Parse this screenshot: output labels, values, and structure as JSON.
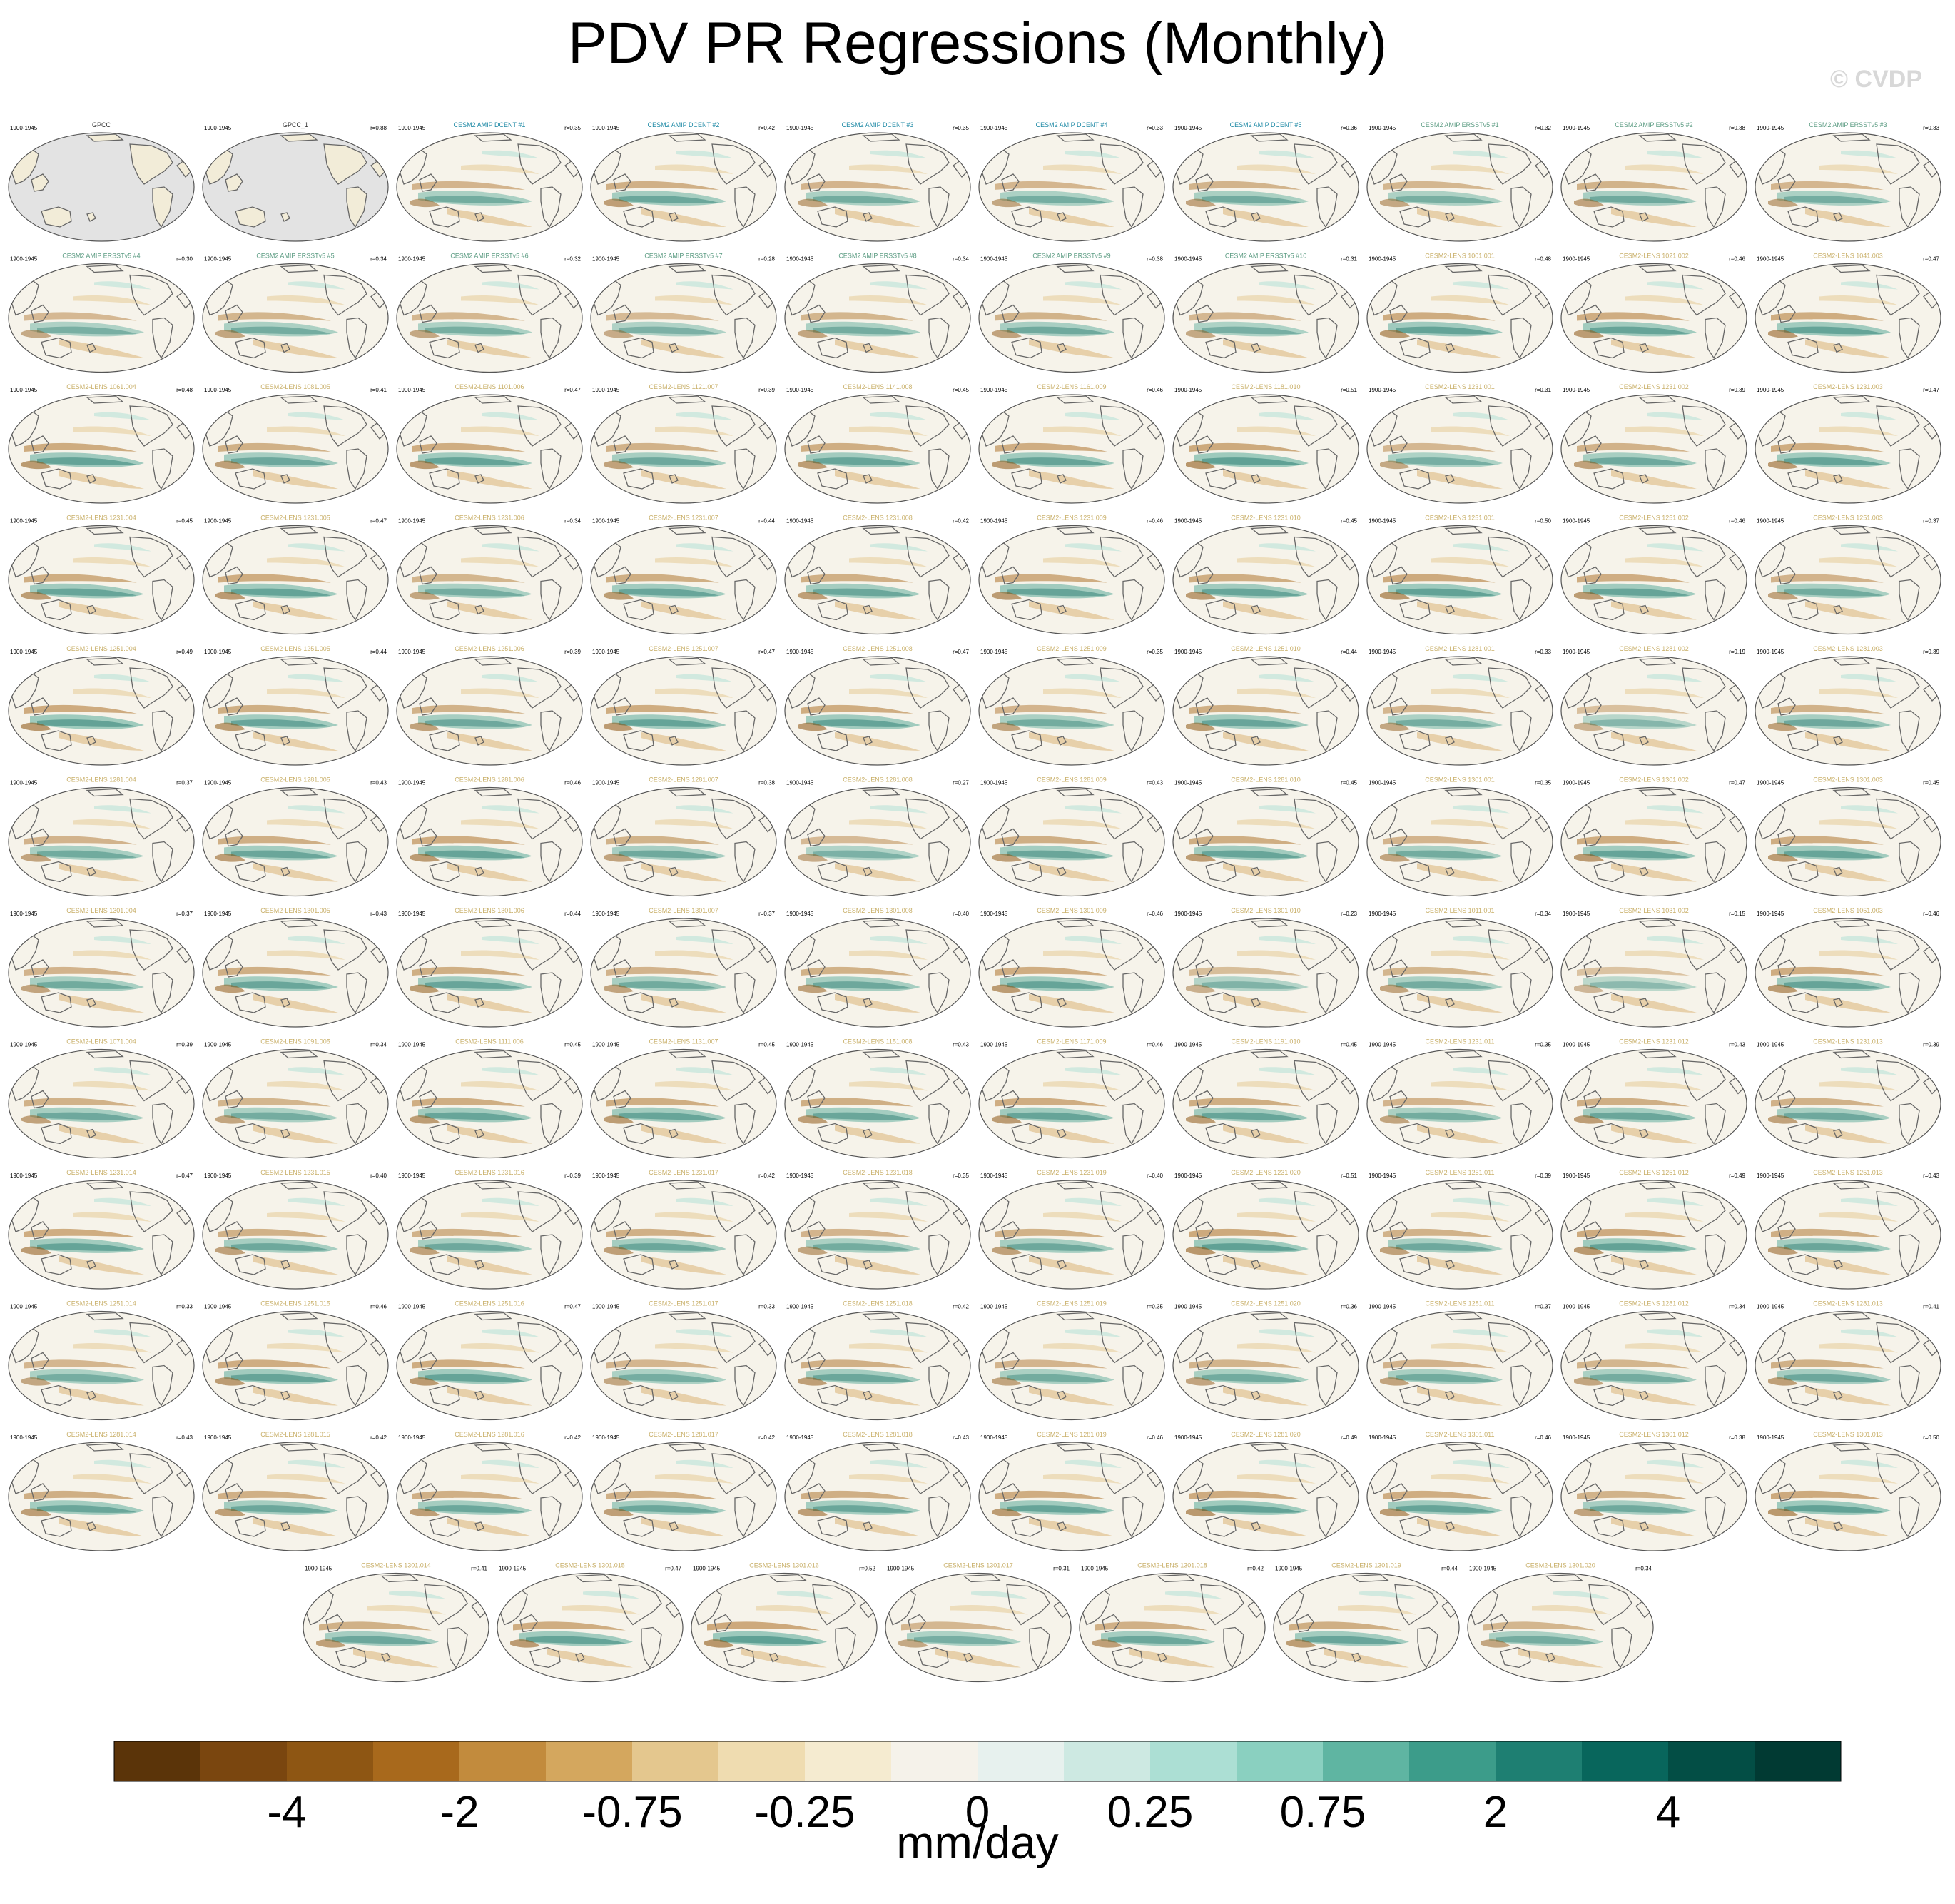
{
  "title": "PDV PR Regressions (Monthly)",
  "watermark": "© CVDP",
  "chart_data": {
    "type": "map-panel-grid",
    "title": "PDV PR Regressions (Monthly)",
    "variable": "PR",
    "units": "mm/day",
    "colorbar": {
      "tick_labels": [
        "-4",
        "-2",
        "-0.75",
        "-0.25",
        "0",
        "0.25",
        "0.75",
        "2",
        "4"
      ],
      "units_label": "mm/day",
      "colors": [
        "#5b3409",
        "#7a460f",
        "#8e5613",
        "#a8691c",
        "#c28b3d",
        "#d4a75e",
        "#e4c78e",
        "#efdcb0",
        "#f5ebd0",
        "#f5f2ea",
        "#e7f1ee",
        "#cde9e2",
        "#acdfd4",
        "#8ad0c0",
        "#5fb5a2",
        "#3c9c8a",
        "#1e7f72",
        "#08665c",
        "#034e45",
        "#013a33"
      ]
    },
    "panels": [
      {
        "name": "GPCC",
        "period": "1900-1945",
        "r": "",
        "obs": true
      },
      {
        "name": "GPCC_1",
        "period": "1900-1945",
        "r": "r=0.88",
        "obs": true
      },
      {
        "name": "CESM2 AMIP DCENT #1",
        "period": "1900-1945",
        "r": "r=0.35"
      },
      {
        "name": "CESM2 AMIP DCENT #2",
        "period": "1900-1945",
        "r": "r=0.42"
      },
      {
        "name": "CESM2 AMIP DCENT #3",
        "period": "1900-1945",
        "r": "r=0.35"
      },
      {
        "name": "CESM2 AMIP DCENT #4",
        "period": "1900-1945",
        "r": "r=0.33"
      },
      {
        "name": "CESM2 AMIP DCENT #5",
        "period": "1900-1945",
        "r": "r=0.36"
      },
      {
        "name": "CESM2 AMIP ERSSTv5 #1",
        "period": "1900-1945",
        "r": "r=0.32"
      },
      {
        "name": "CESM2 AMIP ERSSTv5 #2",
        "period": "1900-1945",
        "r": "r=0.38"
      },
      {
        "name": "CESM2 AMIP ERSSTv5 #3",
        "period": "1900-1945",
        "r": "r=0.33"
      },
      {
        "name": "CESM2 AMIP ERSSTv5 #4",
        "period": "1900-1945",
        "r": "r=0.30"
      },
      {
        "name": "CESM2 AMIP ERSSTv5 #5",
        "period": "1900-1945",
        "r": "r=0.34"
      },
      {
        "name": "CESM2 AMIP ERSSTv5 #6",
        "period": "1900-1945",
        "r": "r=0.32"
      },
      {
        "name": "CESM2 AMIP ERSSTv5 #7",
        "period": "1900-1945",
        "r": "r=0.28"
      },
      {
        "name": "CESM2 AMIP ERSSTv5 #8",
        "period": "1900-1945",
        "r": "r=0.34"
      },
      {
        "name": "CESM2 AMIP ERSSTv5 #9",
        "period": "1900-1945",
        "r": "r=0.38"
      },
      {
        "name": "CESM2 AMIP ERSSTv5 #10",
        "period": "1900-1945",
        "r": "r=0.31"
      },
      {
        "name": "CESM2-LENS 1001.001",
        "period": "1900-1945",
        "r": "r=0.48"
      },
      {
        "name": "CESM2-LENS 1021.002",
        "period": "1900-1945",
        "r": "r=0.46"
      },
      {
        "name": "CESM2-LENS 1041.003",
        "period": "1900-1945",
        "r": "r=0.47"
      },
      {
        "name": "CESM2-LENS 1061.004",
        "period": "1900-1945",
        "r": "r=0.48"
      },
      {
        "name": "CESM2-LENS 1081.005",
        "period": "1900-1945",
        "r": "r=0.41"
      },
      {
        "name": "CESM2-LENS 1101.006",
        "period": "1900-1945",
        "r": "r=0.47"
      },
      {
        "name": "CESM2-LENS 1121.007",
        "period": "1900-1945",
        "r": "r=0.39"
      },
      {
        "name": "CESM2-LENS 1141.008",
        "period": "1900-1945",
        "r": "r=0.45"
      },
      {
        "name": "CESM2-LENS 1161.009",
        "period": "1900-1945",
        "r": "r=0.46"
      },
      {
        "name": "CESM2-LENS 1181.010",
        "period": "1900-1945",
        "r": "r=0.51"
      },
      {
        "name": "CESM2-LENS 1231.001",
        "period": "1900-1945",
        "r": "r=0.31"
      },
      {
        "name": "CESM2-LENS 1231.002",
        "period": "1900-1945",
        "r": "r=0.39"
      },
      {
        "name": "CESM2-LENS 1231.003",
        "period": "1900-1945",
        "r": "r=0.47"
      },
      {
        "name": "CESM2-LENS 1231.004",
        "period": "1900-1945",
        "r": "r=0.45"
      },
      {
        "name": "CESM2-LENS 1231.005",
        "period": "1900-1945",
        "r": "r=0.47"
      },
      {
        "name": "CESM2-LENS 1231.006",
        "period": "1900-1945",
        "r": "r=0.34"
      },
      {
        "name": "CESM2-LENS 1231.007",
        "period": "1900-1945",
        "r": "r=0.44"
      },
      {
        "name": "CESM2-LENS 1231.008",
        "period": "1900-1945",
        "r": "r=0.42"
      },
      {
        "name": "CESM2-LENS 1231.009",
        "period": "1900-1945",
        "r": "r=0.46"
      },
      {
        "name": "CESM2-LENS 1231.010",
        "period": "1900-1945",
        "r": "r=0.45"
      },
      {
        "name": "CESM2-LENS 1251.001",
        "period": "1900-1945",
        "r": "r=0.50"
      },
      {
        "name": "CESM2-LENS 1251.002",
        "period": "1900-1945",
        "r": "r=0.46"
      },
      {
        "name": "CESM2-LENS 1251.003",
        "period": "1900-1945",
        "r": "r=0.37"
      },
      {
        "name": "CESM2-LENS 1251.004",
        "period": "1900-1945",
        "r": "r=0.49"
      },
      {
        "name": "CESM2-LENS 1251.005",
        "period": "1900-1945",
        "r": "r=0.44"
      },
      {
        "name": "CESM2-LENS 1251.006",
        "period": "1900-1945",
        "r": "r=0.39"
      },
      {
        "name": "CESM2-LENS 1251.007",
        "period": "1900-1945",
        "r": "r=0.47"
      },
      {
        "name": "CESM2-LENS 1251.008",
        "period": "1900-1945",
        "r": "r=0.47"
      },
      {
        "name": "CESM2-LENS 1251.009",
        "period": "1900-1945",
        "r": "r=0.35"
      },
      {
        "name": "CESM2-LENS 1251.010",
        "period": "1900-1945",
        "r": "r=0.44"
      },
      {
        "name": "CESM2-LENS 1281.001",
        "period": "1900-1945",
        "r": "r=0.33"
      },
      {
        "name": "CESM2-LENS 1281.002",
        "period": "1900-1945",
        "r": "r=0.19"
      },
      {
        "name": "CESM2-LENS 1281.003",
        "period": "1900-1945",
        "r": "r=0.39"
      },
      {
        "name": "CESM2-LENS 1281.004",
        "period": "1900-1945",
        "r": "r=0.37"
      },
      {
        "name": "CESM2-LENS 1281.005",
        "period": "1900-1945",
        "r": "r=0.43"
      },
      {
        "name": "CESM2-LENS 1281.006",
        "period": "1900-1945",
        "r": "r=0.46"
      },
      {
        "name": "CESM2-LENS 1281.007",
        "period": "1900-1945",
        "r": "r=0.38"
      },
      {
        "name": "CESM2-LENS 1281.008",
        "period": "1900-1945",
        "r": "r=0.27"
      },
      {
        "name": "CESM2-LENS 1281.009",
        "period": "1900-1945",
        "r": "r=0.43"
      },
      {
        "name": "CESM2-LENS 1281.010",
        "period": "1900-1945",
        "r": "r=0.45"
      },
      {
        "name": "CESM2-LENS 1301.001",
        "period": "1900-1945",
        "r": "r=0.35"
      },
      {
        "name": "CESM2-LENS 1301.002",
        "period": "1900-1945",
        "r": "r=0.47"
      },
      {
        "name": "CESM2-LENS 1301.003",
        "period": "1900-1945",
        "r": "r=0.45"
      },
      {
        "name": "CESM2-LENS 1301.004",
        "period": "1900-1945",
        "r": "r=0.37"
      },
      {
        "name": "CESM2-LENS 1301.005",
        "period": "1900-1945",
        "r": "r=0.43"
      },
      {
        "name": "CESM2-LENS 1301.006",
        "period": "1900-1945",
        "r": "r=0.44"
      },
      {
        "name": "CESM2-LENS 1301.007",
        "period": "1900-1945",
        "r": "r=0.37"
      },
      {
        "name": "CESM2-LENS 1301.008",
        "period": "1900-1945",
        "r": "r=0.40"
      },
      {
        "name": "CESM2-LENS 1301.009",
        "period": "1900-1945",
        "r": "r=0.46"
      },
      {
        "name": "CESM2-LENS 1301.010",
        "period": "1900-1945",
        "r": "r=0.23"
      },
      {
        "name": "CESM2-LENS 1011.001",
        "period": "1900-1945",
        "r": "r=0.34"
      },
      {
        "name": "CESM2-LENS 1031.002",
        "period": "1900-1945",
        "r": "r=0.15"
      },
      {
        "name": "CESM2-LENS 1051.003",
        "period": "1900-1945",
        "r": "r=0.46"
      },
      {
        "name": "CESM2-LENS 1071.004",
        "period": "1900-1945",
        "r": "r=0.39"
      },
      {
        "name": "CESM2-LENS 1091.005",
        "period": "1900-1945",
        "r": "r=0.34"
      },
      {
        "name": "CESM2-LENS 1111.006",
        "period": "1900-1945",
        "r": "r=0.45"
      },
      {
        "name": "CESM2-LENS 1131.007",
        "period": "1900-1945",
        "r": "r=0.45"
      },
      {
        "name": "CESM2-LENS 1151.008",
        "period": "1900-1945",
        "r": "r=0.43"
      },
      {
        "name": "CESM2-LENS 1171.009",
        "period": "1900-1945",
        "r": "r=0.46"
      },
      {
        "name": "CESM2-LENS 1191.010",
        "period": "1900-1945",
        "r": "r=0.45"
      },
      {
        "name": "CESM2-LENS 1231.011",
        "period": "1900-1945",
        "r": "r=0.35"
      },
      {
        "name": "CESM2-LENS 1231.012",
        "period": "1900-1945",
        "r": "r=0.43"
      },
      {
        "name": "CESM2-LENS 1231.013",
        "period": "1900-1945",
        "r": "r=0.39"
      },
      {
        "name": "CESM2-LENS 1231.014",
        "period": "1900-1945",
        "r": "r=0.47"
      },
      {
        "name": "CESM2-LENS 1231.015",
        "period": "1900-1945",
        "r": "r=0.40"
      },
      {
        "name": "CESM2-LENS 1231.016",
        "period": "1900-1945",
        "r": "r=0.39"
      },
      {
        "name": "CESM2-LENS 1231.017",
        "period": "1900-1945",
        "r": "r=0.42"
      },
      {
        "name": "CESM2-LENS 1231.018",
        "period": "1900-1945",
        "r": "r=0.35"
      },
      {
        "name": "CESM2-LENS 1231.019",
        "period": "1900-1945",
        "r": "r=0.40"
      },
      {
        "name": "CESM2-LENS 1231.020",
        "period": "1900-1945",
        "r": "r=0.51"
      },
      {
        "name": "CESM2-LENS 1251.011",
        "period": "1900-1945",
        "r": "r=0.39"
      },
      {
        "name": "CESM2-LENS 1251.012",
        "period": "1900-1945",
        "r": "r=0.49"
      },
      {
        "name": "CESM2-LENS 1251.013",
        "period": "1900-1945",
        "r": "r=0.43"
      },
      {
        "name": "CESM2-LENS 1251.014",
        "period": "1900-1945",
        "r": "r=0.33"
      },
      {
        "name": "CESM2-LENS 1251.015",
        "period": "1900-1945",
        "r": "r=0.46"
      },
      {
        "name": "CESM2-LENS 1251.016",
        "period": "1900-1945",
        "r": "r=0.47"
      },
      {
        "name": "CESM2-LENS 1251.017",
        "period": "1900-1945",
        "r": "r=0.33"
      },
      {
        "name": "CESM2-LENS 1251.018",
        "period": "1900-1945",
        "r": "r=0.42"
      },
      {
        "name": "CESM2-LENS 1251.019",
        "period": "1900-1945",
        "r": "r=0.35"
      },
      {
        "name": "CESM2-LENS 1251.020",
        "period": "1900-1945",
        "r": "r=0.36"
      },
      {
        "name": "CESM2-LENS 1281.011",
        "period": "1900-1945",
        "r": "r=0.37"
      },
      {
        "name": "CESM2-LENS 1281.012",
        "period": "1900-1945",
        "r": "r=0.34"
      },
      {
        "name": "CESM2-LENS 1281.013",
        "period": "1900-1945",
        "r": "r=0.41"
      },
      {
        "name": "CESM2-LENS 1281.014",
        "period": "1900-1945",
        "r": "r=0.43"
      },
      {
        "name": "CESM2-LENS 1281.015",
        "period": "1900-1945",
        "r": "r=0.42"
      },
      {
        "name": "CESM2-LENS 1281.016",
        "period": "1900-1945",
        "r": "r=0.42"
      },
      {
        "name": "CESM2-LENS 1281.017",
        "period": "1900-1945",
        "r": "r=0.42"
      },
      {
        "name": "CESM2-LENS 1281.018",
        "period": "1900-1945",
        "r": "r=0.43"
      },
      {
        "name": "CESM2-LENS 1281.019",
        "period": "1900-1945",
        "r": "r=0.46"
      },
      {
        "name": "CESM2-LENS 1281.020",
        "period": "1900-1945",
        "r": "r=0.49"
      },
      {
        "name": "CESM2-LENS 1301.011",
        "period": "1900-1945",
        "r": "r=0.46"
      },
      {
        "name": "CESM2-LENS 1301.012",
        "period": "1900-1945",
        "r": "r=0.38"
      },
      {
        "name": "CESM2-LENS 1301.013",
        "period": "1900-1945",
        "r": "r=0.50"
      },
      {
        "name": "CESM2-LENS 1301.014",
        "period": "1900-1945",
        "r": "r=0.41"
      },
      {
        "name": "CESM2-LENS 1301.015",
        "period": "1900-1945",
        "r": "r=0.47"
      },
      {
        "name": "CESM2-LENS 1301.016",
        "period": "1900-1945",
        "r": "r=0.52"
      },
      {
        "name": "CESM2-LENS 1301.017",
        "period": "1900-1945",
        "r": "r=0.31"
      },
      {
        "name": "CESM2-LENS 1301.018",
        "period": "1900-1945",
        "r": "r=0.42"
      },
      {
        "name": "CESM2-LENS 1301.019",
        "period": "1900-1945",
        "r": "r=0.44"
      },
      {
        "name": "CESM2-LENS 1301.020",
        "period": "1900-1945",
        "r": "r=0.34"
      }
    ]
  }
}
